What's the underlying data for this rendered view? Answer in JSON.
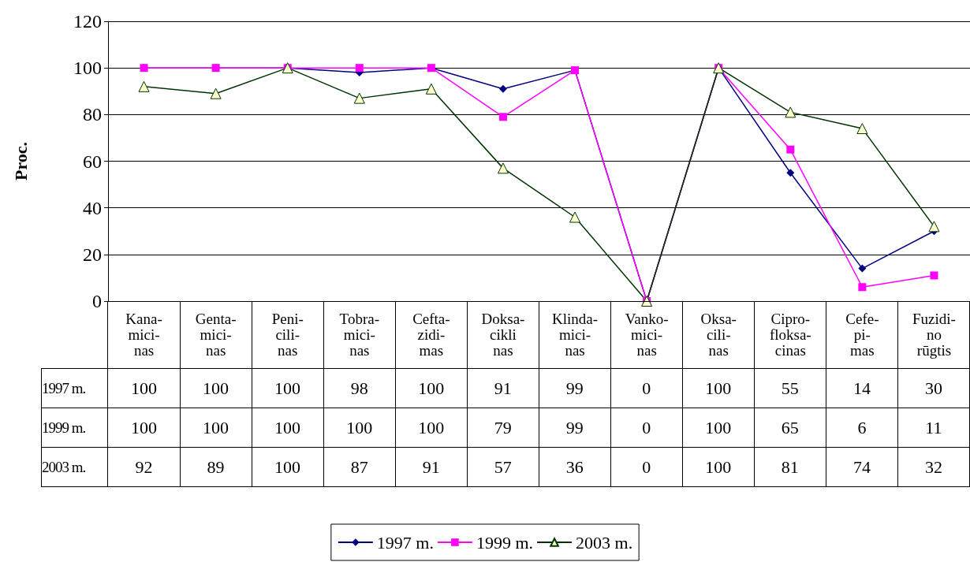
{
  "chart_data": {
    "type": "line",
    "ylabel": "Proc.",
    "categories": [
      "Kana-\nmici-\nnas",
      "Genta-\nmici-\nnas",
      "Peni-\ncili-\nnas",
      "Tobra-\nmici-\nnas",
      "Cefta-\nzidi-\nmas",
      "Doksa-\ncikli\nnas",
      "Klinda-\nmici-\nnas",
      "Vanko-\nmici-\nnas",
      "Oksa-\ncili-\nnas",
      "Cipro-\nfloksa-\ncinas",
      "Cefe-\npi-\nmas",
      "Fuzidi-\nno\nrūgtis"
    ],
    "series": [
      {
        "name": "1997 m.",
        "color": "#000080",
        "marker": "diamond",
        "values": [
          100,
          100,
          100,
          98,
          100,
          91,
          99,
          0,
          100,
          55,
          14,
          30
        ]
      },
      {
        "name": "1999 m.",
        "color": "#ff00ff",
        "marker": "square",
        "values": [
          100,
          100,
          100,
          100,
          100,
          79,
          99,
          0,
          100,
          65,
          6,
          11
        ]
      },
      {
        "name": "2003 m.",
        "color": "#003300",
        "marker": "triangle",
        "values": [
          92,
          89,
          100,
          87,
          91,
          57,
          36,
          0,
          100,
          81,
          74,
          32
        ]
      }
    ],
    "ylim": [
      0,
      120
    ],
    "yticks": [
      0,
      20,
      40,
      60,
      80,
      100,
      120
    ],
    "grid": "y",
    "legend": "bottom",
    "data_labels": true
  }
}
